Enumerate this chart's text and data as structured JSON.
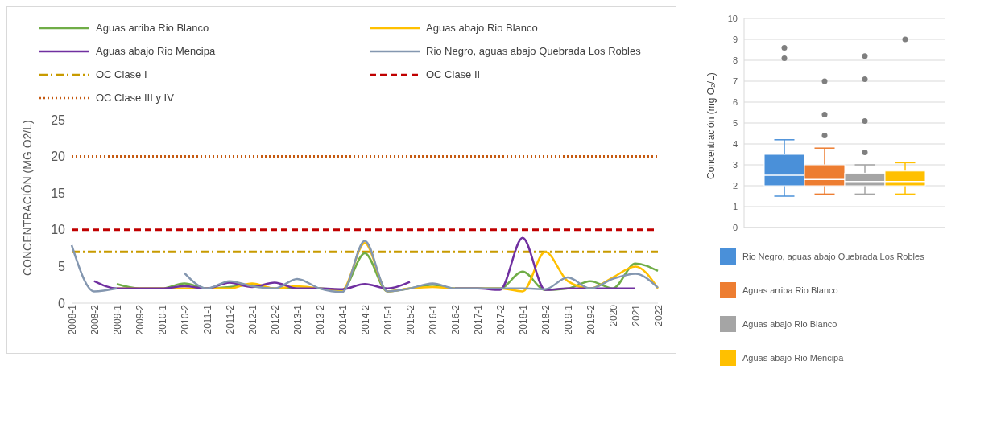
{
  "chart_data": [
    {
      "type": "line",
      "ylabel": "CONCENTRACIÓN (MG O2/L)",
      "categories": [
        "2008-1",
        "2008-2",
        "2009-1",
        "2009-2",
        "2010-1",
        "2010-2",
        "2011-1",
        "2011-2",
        "2012-1",
        "2012-2",
        "2013-1",
        "2013-2",
        "2014-1",
        "2014-2",
        "2015-1",
        "2015-2",
        "2016-1",
        "2016-2",
        "2017-1",
        "2017-2",
        "2018-1",
        "2018-2",
        "2019-1",
        "2019-2",
        "2020",
        "2021",
        "2022"
      ],
      "ylim": [
        0,
        25
      ],
      "yticks": [
        0,
        5,
        10,
        15,
        20,
        25
      ],
      "legend": "top",
      "marker": "none",
      "line_style": "solid",
      "series": [
        {
          "name": "Aguas arriba Rio Blanco",
          "color": "#70ad47",
          "values": [
            null,
            null,
            2.6,
            2.0,
            2.0,
            2.7,
            2.0,
            2.2,
            2.5,
            2.0,
            2.0,
            2.0,
            1.8,
            6.8,
            1.6,
            2.0,
            2.5,
            2.0,
            2.0,
            2.0,
            4.3,
            1.8,
            2.0,
            3.0,
            2.0,
            5.4,
            4.4
          ]
        },
        {
          "name": "Aguas abajo Rio Blanco",
          "color": "#ffc000",
          "values": [
            null,
            null,
            2.0,
            2.0,
            2.0,
            2.0,
            2.0,
            2.0,
            2.7,
            2.0,
            2.3,
            2.0,
            1.8,
            8.2,
            1.6,
            2.0,
            2.2,
            2.0,
            2.0,
            2.0,
            1.6,
            7.0,
            3.0,
            2.0,
            3.5,
            5.0,
            2.0
          ]
        },
        {
          "name": "Aguas abajo Rio Mencipa",
          "color": "#7030a0",
          "values": [
            null,
            3.0,
            2.0,
            2.0,
            2.0,
            2.3,
            2.0,
            2.8,
            2.2,
            2.8,
            2.0,
            2.0,
            1.9,
            2.6,
            2.0,
            2.9,
            null,
            2.0,
            2.0,
            1.8,
            8.9,
            1.8,
            2.0,
            2.0,
            2.0,
            2.0,
            null
          ]
        },
        {
          "name": "Rio Negro, aguas abajo Quebrada Los Robles",
          "color": "#8497b0",
          "values": [
            7.9,
            1.6,
            2.0,
            null,
            null,
            4.1,
            2.0,
            3.0,
            2.3,
            2.0,
            3.3,
            2.0,
            1.5,
            8.5,
            1.6,
            2.0,
            2.7,
            2.0,
            2.0,
            2.0,
            2.0,
            1.9,
            3.5,
            2.0,
            3.3,
            4.0,
            2.1
          ]
        }
      ],
      "ref_lines": [
        {
          "axis": "y",
          "value": 7,
          "label": "OC Clase I",
          "color": "#c89b00",
          "line_style": "dashdot"
        },
        {
          "axis": "y",
          "value": 10,
          "label": "OC Clase II",
          "color": "#c00000",
          "line_style": "dashed"
        },
        {
          "axis": "y",
          "value": 20,
          "label": "OC Clase III y IV",
          "color": "#c55a11",
          "line_style": "dotted"
        }
      ]
    },
    {
      "type": "box",
      "ylabel": "Concentración (mg O₂/L)",
      "categories": [
        null
      ],
      "ylim": [
        0,
        10
      ],
      "yticks": [
        0,
        1,
        2,
        3,
        4,
        5,
        6,
        7,
        8,
        9,
        10
      ],
      "grid": "y",
      "legend": "bottom",
      "series": [
        {
          "name": "Rio Negro, aguas abajo Quebrada Los Robles",
          "color": "#4a90d9",
          "boxes": [
            {
              "low": 1.5,
              "q1": 2.0,
              "median": 2.5,
              "q3": 3.5,
              "high": 4.2,
              "outliers": [
                8.1,
                8.6
              ]
            }
          ]
        },
        {
          "name": "Aguas arriba Rio Blanco",
          "color": "#ed7d31",
          "boxes": [
            {
              "low": 1.6,
              "q1": 2.0,
              "median": 2.3,
              "q3": 3.0,
              "high": 3.8,
              "outliers": [
                4.4,
                5.4,
                7.0
              ]
            }
          ]
        },
        {
          "name": "Aguas abajo Rio Blanco",
          "color": "#a5a5a5",
          "boxes": [
            {
              "low": 1.6,
              "q1": 2.0,
              "median": 2.2,
              "q3": 2.6,
              "high": 3.0,
              "outliers": [
                3.6,
                5.1,
                7.1,
                8.2
              ]
            }
          ]
        },
        {
          "name": "Aguas abajo Rio Mencipa",
          "color": "#ffc000",
          "boxes": [
            {
              "low": 1.6,
              "q1": 2.0,
              "median": 2.2,
              "q3": 2.7,
              "high": 3.1,
              "outliers": [
                9.0
              ]
            }
          ]
        }
      ]
    }
  ]
}
